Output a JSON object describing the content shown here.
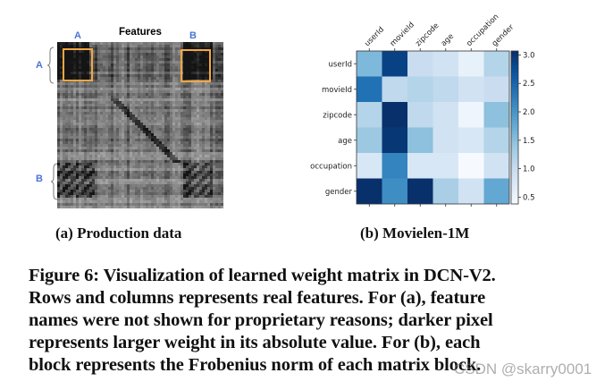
{
  "panel_a": {
    "title": "Features",
    "col_labels": [
      "A",
      "B"
    ],
    "row_labels": [
      "A",
      "B"
    ],
    "subcaption": "(a) Production data",
    "highlight_color": "#f5a742",
    "label_color": "#4a74d6"
  },
  "panel_b": {
    "subcaption": "(b) Movielen-1M"
  },
  "chart_data": {
    "type": "heatmap",
    "title": "",
    "x_labels": [
      "userId",
      "movieId",
      "zipcode",
      "age",
      "occupation",
      "gender"
    ],
    "y_labels": [
      "userId",
      "movieId",
      "zipcode",
      "age",
      "occupation",
      "gender"
    ],
    "values": [
      [
        1.6,
        2.9,
        1.0,
        0.9,
        0.6,
        1.2
      ],
      [
        2.4,
        1.1,
        1.2,
        1.1,
        0.9,
        1.0
      ],
      [
        1.2,
        3.1,
        1.1,
        0.9,
        0.5,
        1.5
      ],
      [
        1.4,
        3.0,
        1.5,
        0.9,
        0.8,
        1.2
      ],
      [
        0.8,
        2.2,
        0.8,
        0.8,
        0.4,
        0.9
      ],
      [
        3.1,
        2.1,
        3.1,
        1.3,
        0.9,
        1.8
      ]
    ],
    "colormap": "Blues",
    "colorbar_range": [
      0.38,
      3.07
    ],
    "colorbar_ticks": [
      "3.0",
      "2.5",
      "2.0",
      "1.5",
      "1.0",
      "0.5"
    ]
  },
  "caption": {
    "lines": [
      "Figure 6: Visualization of learned weight matrix in DCN-V2.",
      "Rows and columns represents real features. For (a), feature",
      "names were not shown for proprietary reasons; darker pixel",
      "represents larger weight in its absolute value. For (b), each",
      "block represents the Frobenius norm of each matrix block."
    ]
  },
  "watermark": "CSDN @skarry0001"
}
